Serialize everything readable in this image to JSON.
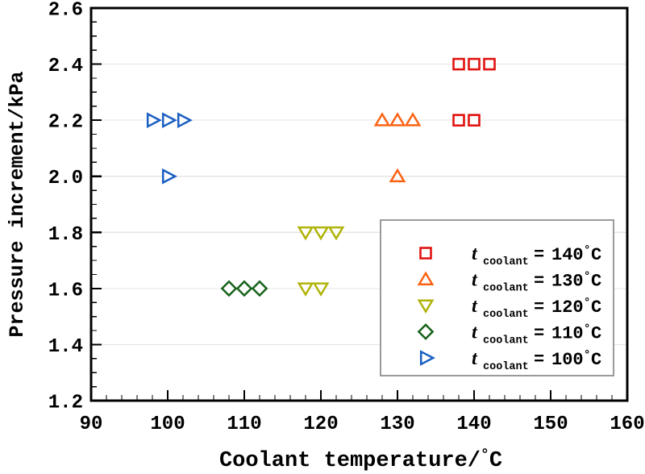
{
  "chart_data": {
    "type": "scatter",
    "title": "",
    "xlabel": "Coolant temperature/°C",
    "ylabel": "Pressure increment/kPa",
    "xlim": [
      90,
      160
    ],
    "ylim": [
      1.2,
      2.6
    ],
    "x_major_ticks": [
      90,
      100,
      110,
      120,
      130,
      140,
      150,
      160
    ],
    "x_tick_labels": [
      "90",
      "100",
      "110",
      "120",
      "130",
      "140",
      "150",
      "160"
    ],
    "x_minor_step": 2,
    "y_major_ticks": [
      1.2,
      1.4,
      1.6,
      1.8,
      2.0,
      2.2,
      2.4,
      2.6
    ],
    "y_tick_labels": [
      "1.2",
      "1.4",
      "1.6",
      "1.8",
      "2.0",
      "2.2",
      "2.4",
      "2.6"
    ],
    "y_minor_step": 0.05,
    "grid": "horizontal gridlines at y major ticks only",
    "legend_position": "inside lower right",
    "legend_var": "t",
    "legend_var_subscript": "coolant",
    "legend_equals": "=",
    "legend_degree": "°",
    "legend_unit": "C",
    "series": [
      {
        "label": "t_coolant = 140 °C",
        "value": "140",
        "marker": "square",
        "color": "#e11311",
        "points": [
          [
            138,
            2.4
          ],
          [
            140,
            2.4
          ],
          [
            142,
            2.4
          ],
          [
            138,
            2.2
          ],
          [
            140,
            2.2
          ]
        ]
      },
      {
        "label": "t_coolant = 130 °C",
        "value": "130",
        "marker": "triangle-up",
        "color": "#fb6314",
        "points": [
          [
            128,
            2.2
          ],
          [
            130,
            2.2
          ],
          [
            132,
            2.2
          ],
          [
            130,
            2.0
          ]
        ]
      },
      {
        "label": "t_coolant = 120 °C",
        "value": "120",
        "marker": "triangle-down",
        "color": "#b0b309",
        "points": [
          [
            118,
            1.8
          ],
          [
            120,
            1.8
          ],
          [
            122,
            1.8
          ],
          [
            118,
            1.6
          ],
          [
            120,
            1.6
          ]
        ]
      },
      {
        "label": "t_coolant = 110 °C",
        "value": "110",
        "marker": "diamond",
        "color": "#17621a",
        "points": [
          [
            108,
            1.6
          ],
          [
            110,
            1.6
          ],
          [
            112,
            1.6
          ]
        ]
      },
      {
        "label": "t_coolant = 100 °C",
        "value": "100",
        "marker": "triangle-right",
        "color": "#1a5fc2",
        "points": [
          [
            98,
            2.2
          ],
          [
            100,
            2.2
          ],
          [
            102,
            2.2
          ],
          [
            100,
            2.0
          ]
        ]
      }
    ],
    "colors": {
      "background": "#ffffff",
      "axis": "#000000",
      "grid": "#e4e4e4",
      "legend_border": "#9a9a9a",
      "text": "#000000"
    }
  }
}
